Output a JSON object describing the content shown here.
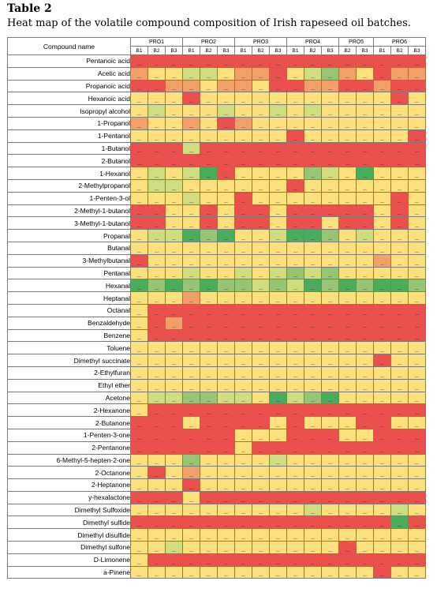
{
  "title": "Table 2",
  "caption": "Heat map of the volatile compound composition of Irish rapeseed oil batches.",
  "header": {
    "compound_col": "Compound name",
    "producers": [
      {
        "label": "PRO1",
        "batches": [
          "B1",
          "B2",
          "B3"
        ]
      },
      {
        "label": "PRO2",
        "batches": [
          "B1",
          "B2",
          "B3"
        ]
      },
      {
        "label": "PRO3",
        "batches": [
          "B1",
          "B2",
          "B3"
        ]
      },
      {
        "label": "PRO4",
        "batches": [
          "B1",
          "B2",
          "B3"
        ]
      },
      {
        "label": "PRO5",
        "batches": [
          "B2",
          "B3"
        ]
      },
      {
        "label": "PRO6",
        "batches": [
          "B1",
          "B2",
          "B3"
        ]
      }
    ]
  },
  "color_scale": [
    "#e9504e",
    "#f2a06a",
    "#fbe07d",
    "#cfdc7f",
    "#96c675",
    "#4aad5e"
  ],
  "rows": [
    {
      "name": "Pentanoic acid",
      "levels": [
        0,
        0,
        0,
        0,
        0,
        0,
        0,
        0,
        0,
        0,
        0,
        0,
        0,
        0,
        0,
        0,
        0
      ]
    },
    {
      "name": "Acetic acid",
      "levels": [
        1,
        2,
        2,
        3,
        3,
        2,
        1,
        1,
        0,
        2,
        3,
        4,
        1,
        2,
        0,
        1,
        1
      ]
    },
    {
      "name": "Propanoic acid",
      "levels": [
        0,
        0,
        1,
        1,
        2,
        1,
        1,
        2,
        0,
        0,
        1,
        1,
        0,
        0,
        1,
        0,
        0
      ]
    },
    {
      "name": "Hexanoic acid",
      "levels": [
        2,
        2,
        2,
        0,
        2,
        2,
        2,
        2,
        2,
        2,
        2,
        2,
        2,
        2,
        2,
        0,
        2
      ]
    },
    {
      "name": "Isopropyl alcohol",
      "levels": [
        2,
        3,
        2,
        2,
        2,
        3,
        2,
        2,
        3,
        2,
        3,
        2,
        2,
        2,
        2,
        2,
        2
      ]
    },
    {
      "name": "1-Propanol",
      "levels": [
        1,
        2,
        2,
        1,
        2,
        0,
        1,
        2,
        2,
        2,
        2,
        2,
        2,
        2,
        2,
        2,
        2
      ]
    },
    {
      "name": "1-Pentanol",
      "levels": [
        2,
        2,
        2,
        2,
        2,
        2,
        2,
        2,
        2,
        0,
        2,
        2,
        2,
        2,
        2,
        2,
        0
      ]
    },
    {
      "name": "1-Butanol",
      "levels": [
        0,
        0,
        0,
        3,
        0,
        0,
        0,
        0,
        0,
        0,
        0,
        0,
        0,
        0,
        0,
        0,
        0
      ]
    },
    {
      "name": "2-Butanol",
      "levels": [
        0,
        0,
        0,
        0,
        0,
        0,
        0,
        0,
        0,
        0,
        0,
        0,
        0,
        0,
        0,
        0,
        0
      ]
    },
    {
      "name": "1-Hexanol",
      "levels": [
        2,
        3,
        2,
        3,
        5,
        0,
        2,
        2,
        2,
        2,
        4,
        3,
        2,
        5,
        2,
        2,
        2
      ]
    },
    {
      "name": "2-Methylpropanol",
      "levels": [
        2,
        3,
        3,
        2,
        2,
        2,
        2,
        2,
        2,
        0,
        2,
        2,
        2,
        2,
        2,
        2,
        2
      ]
    },
    {
      "name": "1-Penten-3-ol",
      "levels": [
        2,
        2,
        2,
        3,
        2,
        2,
        0,
        2,
        2,
        2,
        2,
        2,
        2,
        2,
        2,
        0,
        2
      ]
    },
    {
      "name": "2-Methyl-1-butanol",
      "levels": [
        0,
        0,
        2,
        2,
        0,
        2,
        0,
        0,
        2,
        0,
        0,
        0,
        0,
        0,
        2,
        0,
        2
      ]
    },
    {
      "name": "3-Methyl-1-butanol",
      "levels": [
        0,
        0,
        2,
        2,
        0,
        2,
        0,
        0,
        2,
        0,
        0,
        2,
        0,
        0,
        2,
        0,
        2
      ]
    },
    {
      "name": "Propanal",
      "levels": [
        2,
        3,
        3,
        5,
        4,
        5,
        2,
        2,
        3,
        5,
        5,
        4,
        2,
        3,
        2,
        2,
        2
      ]
    },
    {
      "name": "Butanal",
      "levels": [
        2,
        2,
        2,
        2,
        2,
        2,
        2,
        2,
        2,
        2,
        2,
        2,
        2,
        2,
        2,
        2,
        2
      ]
    },
    {
      "name": "3-Methylbutanal",
      "levels": [
        0,
        2,
        2,
        2,
        2,
        2,
        2,
        2,
        2,
        2,
        2,
        2,
        2,
        2,
        1,
        2,
        2
      ]
    },
    {
      "name": "Pentanal",
      "levels": [
        2,
        2,
        2,
        3,
        2,
        2,
        3,
        2,
        3,
        4,
        3,
        4,
        2,
        2,
        2,
        2,
        2
      ]
    },
    {
      "name": "Hexanal",
      "levels": [
        5,
        4,
        5,
        4,
        5,
        4,
        4,
        3,
        4,
        3,
        5,
        4,
        5,
        4,
        5,
        5,
        4
      ]
    },
    {
      "name": "Heptanal",
      "levels": [
        2,
        2,
        2,
        1,
        2,
        2,
        2,
        2,
        2,
        2,
        2,
        2,
        2,
        2,
        2,
        2,
        2
      ]
    },
    {
      "name": "Octanal",
      "levels": [
        2,
        0,
        0,
        0,
        0,
        0,
        0,
        0,
        0,
        0,
        0,
        0,
        0,
        0,
        0,
        0,
        0
      ]
    },
    {
      "name": "Benzaldehyde",
      "levels": [
        2,
        0,
        1,
        0,
        0,
        0,
        0,
        0,
        0,
        0,
        0,
        0,
        0,
        0,
        0,
        0,
        0
      ]
    },
    {
      "name": "Benzene",
      "levels": [
        2,
        0,
        0,
        0,
        0,
        0,
        0,
        0,
        0,
        0,
        0,
        0,
        0,
        0,
        0,
        0,
        0
      ]
    },
    {
      "name": "Toluene",
      "levels": [
        2,
        2,
        2,
        2,
        2,
        2,
        2,
        2,
        2,
        2,
        2,
        2,
        2,
        2,
        2,
        2,
        2
      ]
    },
    {
      "name": "Dimethyl succinate",
      "levels": [
        2,
        2,
        2,
        2,
        2,
        2,
        2,
        2,
        2,
        2,
        2,
        2,
        2,
        2,
        0,
        2,
        2
      ]
    },
    {
      "name": "2-Ethylfuran",
      "levels": [
        2,
        2,
        2,
        2,
        2,
        2,
        2,
        2,
        2,
        2,
        2,
        2,
        2,
        2,
        2,
        2,
        2
      ]
    },
    {
      "name": "Ethyl ether",
      "levels": [
        2,
        2,
        2,
        2,
        2,
        2,
        2,
        2,
        2,
        2,
        2,
        2,
        2,
        2,
        2,
        2,
        2
      ]
    },
    {
      "name": "Acetone",
      "levels": [
        2,
        3,
        3,
        4,
        4,
        3,
        3,
        2,
        5,
        3,
        4,
        5,
        2,
        2,
        2,
        2,
        2
      ]
    },
    {
      "name": "2-Hexanone",
      "levels": [
        2,
        0,
        0,
        0,
        0,
        0,
        0,
        0,
        0,
        0,
        0,
        0,
        0,
        0,
        0,
        0,
        0
      ]
    },
    {
      "name": "2-Butanone",
      "levels": [
        0,
        0,
        0,
        2,
        0,
        0,
        0,
        0,
        2,
        0,
        2,
        2,
        2,
        0,
        0,
        2,
        2
      ]
    },
    {
      "name": "1-Penten-3-one",
      "levels": [
        0,
        0,
        0,
        0,
        0,
        0,
        2,
        2,
        2,
        0,
        0,
        0,
        2,
        2,
        0,
        0,
        0
      ]
    },
    {
      "name": "2-Pentanone",
      "levels": [
        0,
        0,
        0,
        0,
        0,
        0,
        2,
        0,
        0,
        0,
        0,
        0,
        0,
        0,
        0,
        0,
        0
      ]
    },
    {
      "name": "6-Methyl-5-hepten-2-one",
      "levels": [
        2,
        2,
        2,
        4,
        2,
        2,
        2,
        2,
        3,
        2,
        2,
        2,
        2,
        2,
        2,
        2,
        2
      ]
    },
    {
      "name": "2-Octanone",
      "levels": [
        2,
        0,
        2,
        1,
        2,
        2,
        2,
        2,
        2,
        2,
        2,
        2,
        2,
        2,
        2,
        2,
        2
      ]
    },
    {
      "name": "2-Heptanone",
      "levels": [
        2,
        2,
        2,
        0,
        2,
        2,
        2,
        2,
        2,
        2,
        2,
        2,
        2,
        2,
        2,
        2,
        2
      ]
    },
    {
      "name": "y-hexalactone",
      "levels": [
        0,
        0,
        0,
        2,
        0,
        0,
        0,
        0,
        0,
        0,
        0,
        0,
        0,
        0,
        0,
        0,
        0
      ]
    },
    {
      "name": "Dimethyl Sulfoxide",
      "levels": [
        2,
        2,
        2,
        2,
        2,
        2,
        2,
        2,
        2,
        2,
        3,
        2,
        2,
        2,
        2,
        3,
        2
      ]
    },
    {
      "name": "Dimethyl sulfide",
      "levels": [
        0,
        0,
        0,
        0,
        0,
        0,
        0,
        0,
        0,
        0,
        0,
        0,
        0,
        0,
        0,
        5,
        0
      ]
    },
    {
      "name": "Dimethyl disulfide",
      "levels": [
        2,
        2,
        2,
        2,
        2,
        2,
        2,
        2,
        2,
        2,
        2,
        2,
        2,
        2,
        2,
        2,
        2
      ]
    },
    {
      "name": "Dimethyl sulfone",
      "levels": [
        2,
        2,
        3,
        2,
        2,
        2,
        2,
        2,
        2,
        2,
        2,
        2,
        0,
        2,
        2,
        2,
        2
      ]
    },
    {
      "name": "D-Limonene",
      "levels": [
        2,
        0,
        0,
        0,
        0,
        0,
        0,
        0,
        0,
        0,
        0,
        0,
        0,
        0,
        0,
        0,
        0
      ]
    },
    {
      "name": "a-Pinene",
      "levels": [
        2,
        2,
        2,
        2,
        2,
        2,
        2,
        2,
        2,
        2,
        2,
        2,
        2,
        2,
        0,
        2,
        2
      ]
    }
  ]
}
